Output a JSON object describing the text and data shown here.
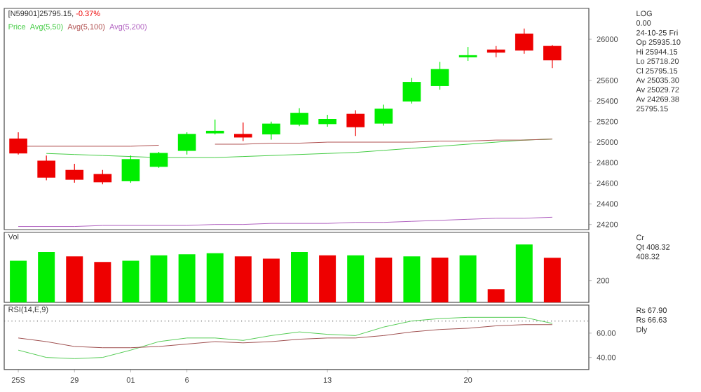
{
  "chart_data": [
    {
      "type": "candlestick",
      "title": "[N59901]25795.15,",
      "subtitle": "-0.37%",
      "legend_title": "Price",
      "legend": "top left",
      "categories": [
        null,
        null,
        null,
        null,
        null,
        null,
        null,
        null,
        null,
        null,
        null,
        null,
        null,
        null,
        null,
        null,
        null,
        null,
        null,
        null
      ],
      "ohlc": [
        [
          25035,
          25095,
          24880,
          24890
        ],
        [
          24820,
          24870,
          24630,
          24655
        ],
        [
          24730,
          24790,
          24605,
          24635
        ],
        [
          24690,
          24730,
          24590,
          24610
        ],
        [
          24620,
          24870,
          24605,
          24835
        ],
        [
          24760,
          24905,
          24750,
          24895
        ],
        [
          24915,
          25095,
          24880,
          25080
        ],
        [
          25085,
          25220,
          25075,
          25110
        ],
        [
          25080,
          25190,
          25010,
          25045
        ],
        [
          25075,
          25200,
          25025,
          25180
        ],
        [
          25170,
          25330,
          25155,
          25285
        ],
        [
          25175,
          25265,
          25150,
          25225
        ],
        [
          25275,
          25310,
          25060,
          25145
        ],
        [
          25180,
          25365,
          25160,
          25325
        ],
        [
          25395,
          25625,
          25375,
          25585
        ],
        [
          25545,
          25780,
          25510,
          25710
        ],
        [
          25825,
          25925,
          25790,
          25845
        ],
        [
          25900,
          25935,
          25825,
          25870
        ],
        [
          26055,
          26105,
          25860,
          25890
        ],
        [
          25935,
          25945,
          25720,
          25795
        ]
      ],
      "colors": [
        "#ee0000",
        "#ee0000",
        "#ee0000",
        "#ee0000",
        "#00ee00",
        "#00ee00",
        "#00ee00",
        "#00ee00",
        "#ee0000",
        "#00ee00",
        "#00ee00",
        "#00ee00",
        "#ee0000",
        "#00ee00",
        "#00ee00",
        "#00ee00",
        "#00ee00",
        "#ee0000",
        "#ee0000",
        "#ee0000"
      ],
      "series": [
        {
          "type": "line",
          "name": "Avg(5,50)",
          "color": "#44cc44",
          "values": [
            null,
            24890,
            24880,
            24870,
            24860,
            24850,
            24850,
            24850,
            24860,
            24870,
            24880,
            24890,
            24900,
            24920,
            24940,
            24960,
            24980,
            25000,
            25020,
            25030
          ]
        },
        {
          "type": "line",
          "name": "Avg(5,100)",
          "color": "#b05050",
          "values": [
            24960,
            24960,
            24960,
            24960,
            24960,
            24970,
            null,
            24980,
            24980,
            24990,
            24990,
            25000,
            25000,
            25000,
            25000,
            25010,
            25010,
            25020,
            25020,
            25030
          ]
        },
        {
          "type": "line",
          "name": "Avg(5,200)",
          "color": "#b060c0",
          "values": [
            24180,
            24180,
            24180,
            24190,
            24190,
            24190,
            24190,
            24200,
            24200,
            24210,
            24210,
            24210,
            24220,
            24220,
            24230,
            24240,
            24250,
            24260,
            24260,
            24270
          ]
        }
      ],
      "ylim": [
        24150,
        26300
      ],
      "yticks": [
        24200,
        24400,
        24600,
        24800,
        25000,
        25200,
        25400,
        25600,
        26000
      ],
      "tick_labels": "y",
      "annotations": [
        "LOG",
        "0.00",
        "24-10-25 Fri",
        "Op 25935.10",
        "Hi 25944.15",
        "Lo 25718.20",
        "Cl 25795.15",
        "Av 25035.30",
        "Av 25029.72",
        "Av 24269.38",
        "25795.15"
      ]
    },
    {
      "type": "bar",
      "title": "Vol",
      "categories": [
        null,
        null,
        null,
        null,
        null,
        null,
        null,
        null,
        null,
        null,
        null,
        null,
        null,
        null,
        null,
        null,
        null,
        null,
        null,
        null
      ],
      "values": [
        380,
        460,
        420,
        370,
        380,
        430,
        440,
        450,
        420,
        400,
        460,
        430,
        430,
        410,
        420,
        410,
        430,
        120,
        530,
        408.32
      ],
      "colors": [
        "#00ee00",
        "#00ee00",
        "#ee0000",
        "#ee0000",
        "#00ee00",
        "#00ee00",
        "#00ee00",
        "#00ee00",
        "#ee0000",
        "#ee0000",
        "#00ee00",
        "#ee0000",
        "#00ee00",
        "#ee0000",
        "#00ee00",
        "#ee0000",
        "#00ee00",
        "#ee0000",
        "#00ee00",
        "#ee0000"
      ],
      "ylim": [
        0,
        640
      ],
      "yticks": [
        200
      ],
      "tick_labels": "y",
      "annotations": [
        "Cr",
        "Qt 408.32",
        "408.32"
      ]
    },
    {
      "type": "line",
      "title": "RSI(14,E,9)",
      "categories": [
        "25S",
        null,
        "29",
        null,
        "01",
        null,
        "6",
        null,
        null,
        null,
        null,
        "13",
        null,
        null,
        null,
        null,
        "20",
        null,
        null,
        null
      ],
      "series": [
        {
          "color": "#55cc55",
          "values": [
            46,
            40,
            39,
            40,
            46,
            53,
            56,
            56,
            54,
            58,
            61,
            59,
            58,
            65,
            70,
            72,
            73,
            73,
            73,
            68
          ]
        },
        {
          "color": "#a05050",
          "values": [
            56,
            53,
            49,
            48,
            48,
            49,
            51,
            53,
            52,
            53,
            55,
            56,
            56,
            58,
            61,
            63,
            64,
            66,
            67,
            67
          ]
        }
      ],
      "ylim": [
        30,
        83
      ],
      "yticks": [
        {
          "value": 40,
          "label": "40.00"
        },
        {
          "value": 60,
          "label": "60.00"
        }
      ],
      "ref_lines": [
        {
          "axis": "y",
          "value": 70,
          "color": "#666666",
          "line_style": "dotted"
        }
      ],
      "annotations": [
        "Rs 67.90",
        "Rs 66.63",
        "Dly"
      ]
    }
  ]
}
